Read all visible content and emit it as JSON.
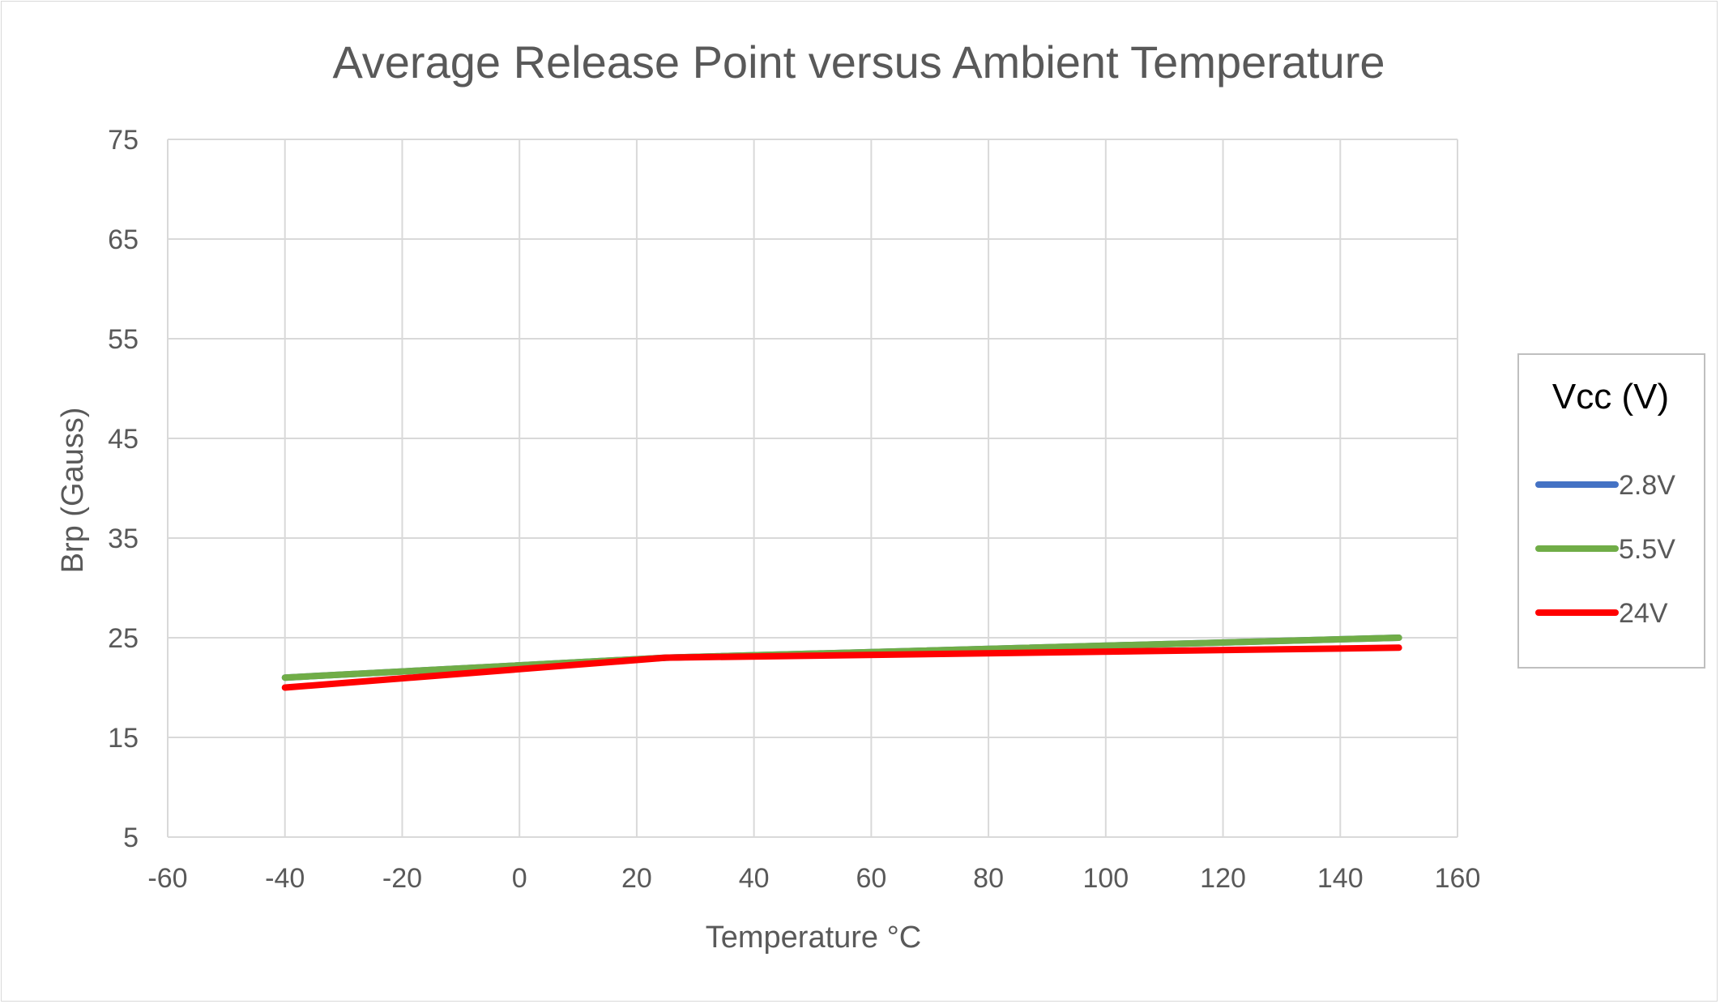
{
  "chart_data": {
    "type": "line",
    "title": "Average Release Point versus Ambient Temperature",
    "xlabel": "Temperature °C",
    "ylabel": "Brp (Gauss)",
    "xlim": [
      -60,
      160
    ],
    "ylim": [
      5,
      75
    ],
    "xticks": [
      -60,
      -40,
      -20,
      0,
      20,
      40,
      60,
      80,
      100,
      120,
      140,
      160
    ],
    "yticks": [
      5,
      15,
      25,
      35,
      45,
      55,
      65,
      75
    ],
    "grid": true,
    "legend": {
      "title": "Vcc (V)",
      "position": "right"
    },
    "series": [
      {
        "name": "2.8V",
        "color": "#4472c4",
        "x": [
          -40,
          25,
          150
        ],
        "values": [
          21,
          23,
          25
        ]
      },
      {
        "name": "5.5V",
        "color": "#70ad47",
        "x": [
          -40,
          25,
          150
        ],
        "values": [
          21,
          23,
          25
        ]
      },
      {
        "name": "24V",
        "color": "#ff0000",
        "x": [
          -40,
          25,
          150
        ],
        "values": [
          20,
          23,
          24
        ]
      }
    ]
  }
}
